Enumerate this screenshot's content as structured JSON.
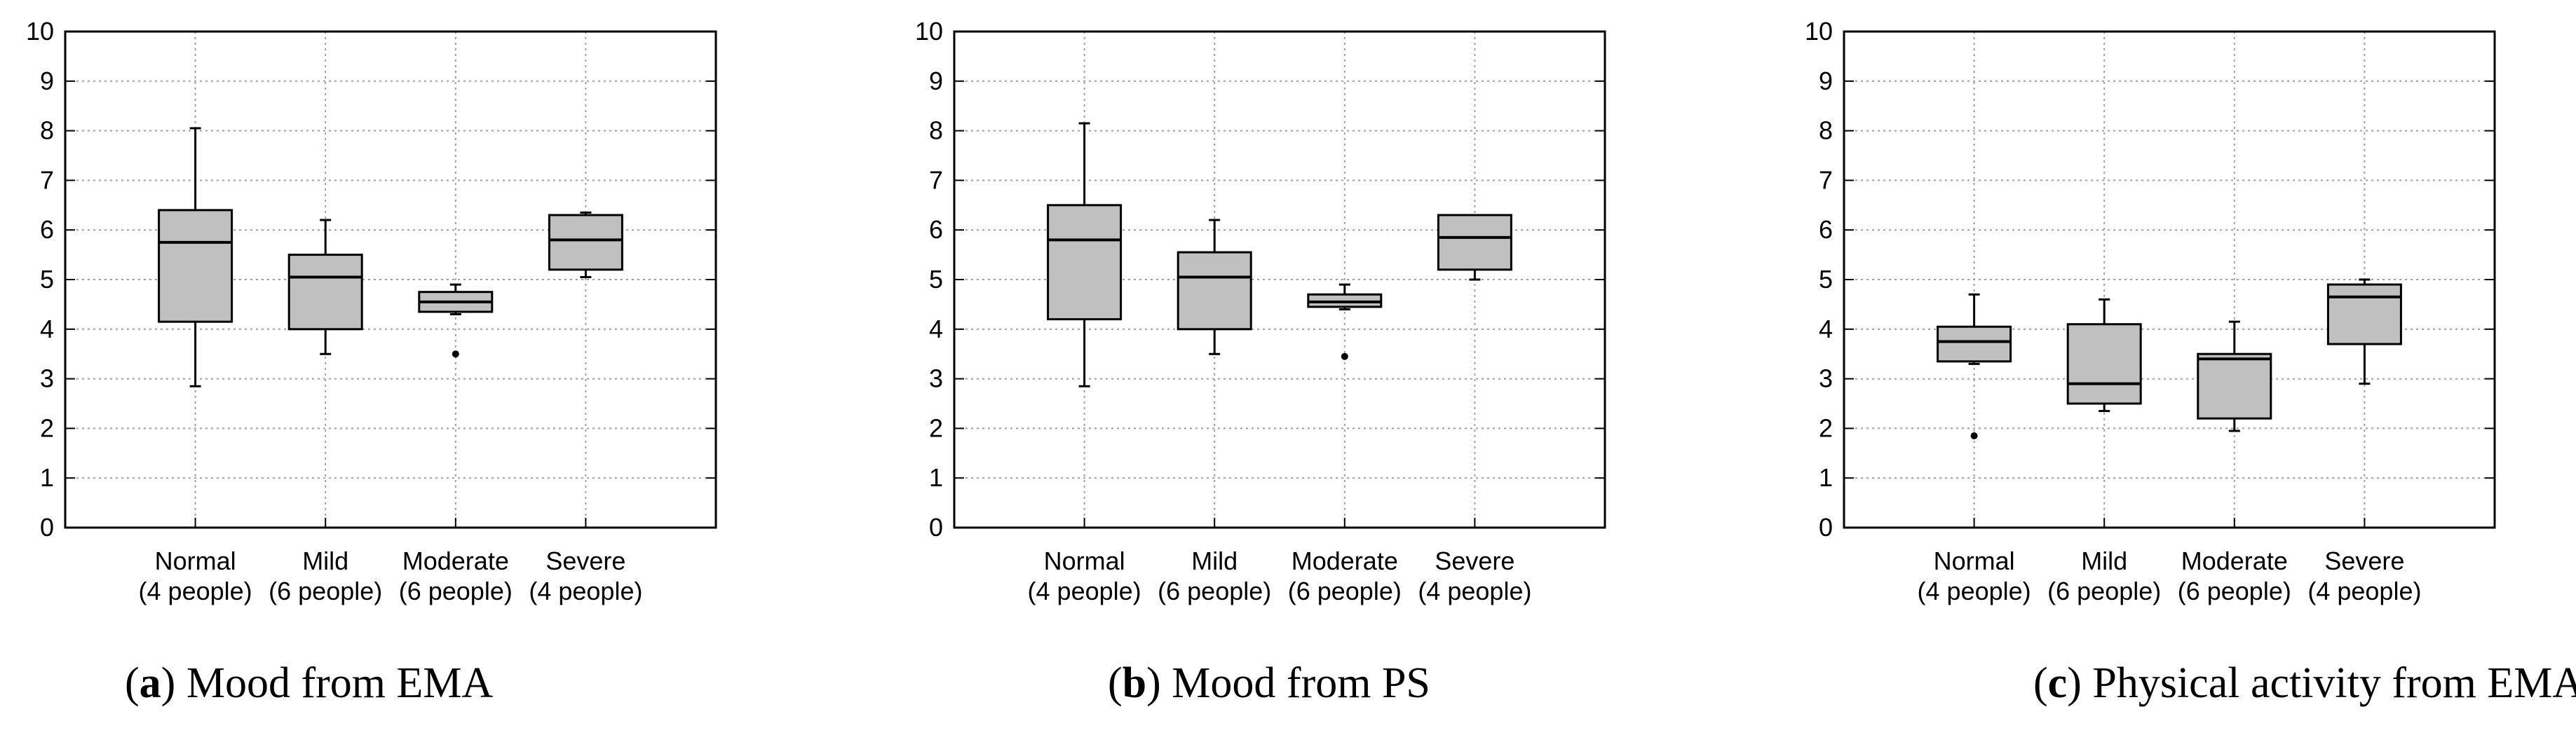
{
  "chart_data": [
    {
      "type": "boxplot",
      "panel_letter": "a",
      "title": "Mood from EMA",
      "ylim": [
        0,
        10
      ],
      "yticks": [
        "0",
        "1",
        "2",
        "3",
        "4",
        "5",
        "6",
        "7",
        "8",
        "9",
        "10"
      ],
      "grid": true,
      "categories": [
        {
          "name": "Normal",
          "count": "(4 people)"
        },
        {
          "name": "Mild",
          "count": "(6 people)"
        },
        {
          "name": "Moderate",
          "count": "(6 people)"
        },
        {
          "name": "Severe",
          "count": "(4 people)"
        }
      ],
      "boxes": [
        {
          "whisker_low": 2.85,
          "q1": 4.15,
          "median": 5.75,
          "q3": 6.4,
          "whisker_high": 8.05,
          "outliers": []
        },
        {
          "whisker_low": 3.5,
          "q1": 4.0,
          "median": 5.05,
          "q3": 5.5,
          "whisker_high": 6.2,
          "outliers": []
        },
        {
          "whisker_low": 4.3,
          "q1": 4.35,
          "median": 4.55,
          "q3": 4.75,
          "whisker_high": 4.9,
          "outliers": [
            3.5
          ]
        },
        {
          "whisker_low": 5.05,
          "q1": 5.2,
          "median": 5.8,
          "q3": 6.3,
          "whisker_high": 6.35,
          "outliers": []
        }
      ]
    },
    {
      "type": "boxplot",
      "panel_letter": "b",
      "title": "Mood from PS",
      "ylim": [
        0,
        10
      ],
      "yticks": [
        "0",
        "1",
        "2",
        "3",
        "4",
        "5",
        "6",
        "7",
        "8",
        "9",
        "10"
      ],
      "grid": true,
      "categories": [
        {
          "name": "Normal",
          "count": "(4 people)"
        },
        {
          "name": "Mild",
          "count": "(6 people)"
        },
        {
          "name": "Moderate",
          "count": "(6 people)"
        },
        {
          "name": "Severe",
          "count": "(4 people)"
        }
      ],
      "boxes": [
        {
          "whisker_low": 2.85,
          "q1": 4.2,
          "median": 5.8,
          "q3": 6.5,
          "whisker_high": 8.15,
          "outliers": []
        },
        {
          "whisker_low": 3.5,
          "q1": 4.0,
          "median": 5.05,
          "q3": 5.55,
          "whisker_high": 6.2,
          "outliers": []
        },
        {
          "whisker_low": 4.4,
          "q1": 4.45,
          "median": 4.55,
          "q3": 4.7,
          "whisker_high": 4.9,
          "outliers": [
            3.45
          ]
        },
        {
          "whisker_low": 5.0,
          "q1": 5.2,
          "median": 5.85,
          "q3": 6.3,
          "whisker_high": 6.3,
          "outliers": []
        }
      ]
    },
    {
      "type": "boxplot",
      "panel_letter": "c",
      "title": "Physical activity from EMA",
      "ylim": [
        0,
        10
      ],
      "yticks": [
        "0",
        "1",
        "2",
        "3",
        "4",
        "5",
        "6",
        "7",
        "8",
        "9",
        "10"
      ],
      "grid": true,
      "categories": [
        {
          "name": "Normal",
          "count": "(4 people)"
        },
        {
          "name": "Mild",
          "count": "(6 people)"
        },
        {
          "name": "Moderate",
          "count": "(6 people)"
        },
        {
          "name": "Severe",
          "count": "(4 people)"
        }
      ],
      "boxes": [
        {
          "whisker_low": 3.3,
          "q1": 3.35,
          "median": 3.75,
          "q3": 4.05,
          "whisker_high": 4.7,
          "outliers": [
            1.85
          ]
        },
        {
          "whisker_low": 2.35,
          "q1": 2.5,
          "median": 2.9,
          "q3": 4.1,
          "whisker_high": 4.6,
          "outliers": []
        },
        {
          "whisker_low": 1.95,
          "q1": 2.2,
          "median": 3.4,
          "q3": 3.5,
          "whisker_high": 4.15,
          "outliers": []
        },
        {
          "whisker_low": 2.9,
          "q1": 3.7,
          "median": 4.65,
          "q3": 4.9,
          "whisker_high": 5.0,
          "outliers": []
        }
      ]
    }
  ],
  "colors": {
    "box_fill": "#c0c0c0",
    "stroke": "#000000",
    "grid": "#a0a0a0"
  }
}
